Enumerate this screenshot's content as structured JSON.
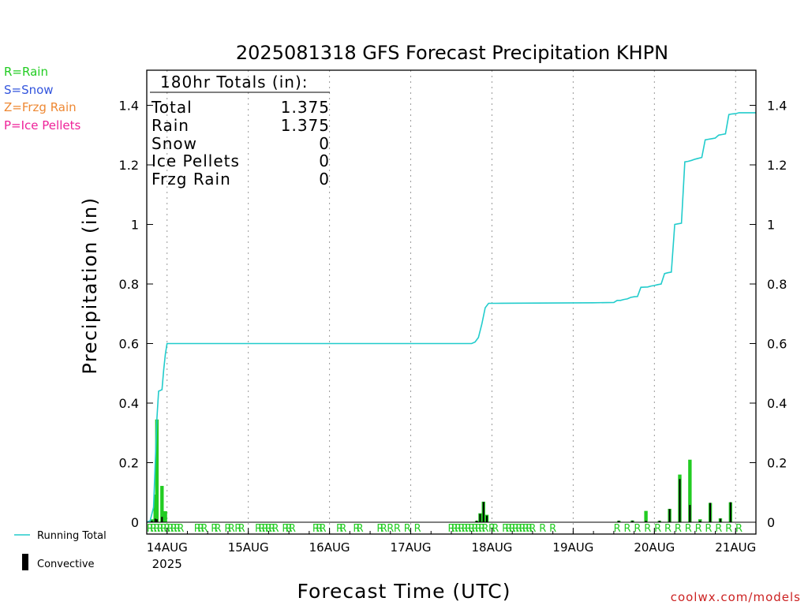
{
  "legend_types": [
    {
      "label": "R=Rain",
      "color": "#22cc22"
    },
    {
      "label": "S=Snow",
      "color": "#3355dd"
    },
    {
      "label": "Z=Frzg Rain",
      "color": "#ee8833"
    },
    {
      "label": "P=Ice Pellets",
      "color": "#ee2299"
    }
  ],
  "legend_lines": {
    "running_total": "Running Total",
    "convective": "Convective"
  },
  "totals_box": {
    "heading": "180hr Totals (in):",
    "rows": [
      {
        "label": "Total",
        "value": "1.375"
      },
      {
        "label": "Rain",
        "value": "1.375"
      },
      {
        "label": "Snow",
        "value": "0"
      },
      {
        "label": "Ice Pellets",
        "value": "0"
      },
      {
        "label": "Frzg Rain",
        "value": "0"
      }
    ]
  },
  "watermark": "coolwx.com/models",
  "chart_data": {
    "type": "bar",
    "title": "2025081318 GFS Forecast Precipitation KHPN",
    "xlabel": "Forecast Time (UTC)",
    "ylabel": "Precipitation (in)",
    "ylim": [
      0,
      1.5
    ],
    "yticks": [
      0,
      0.2,
      0.4,
      0.6,
      0.8,
      1,
      1.2,
      1.4
    ],
    "ytick_labels": [
      "0",
      "0.2",
      "0.4",
      "0.6",
      "0.8",
      "1",
      "1.2",
      "1.4"
    ],
    "xlim": [
      -6,
      174
    ],
    "x_ticks": [
      {
        "hour": 0,
        "label": "14AUG",
        "sublabel": "2025"
      },
      {
        "hour": 24,
        "label": "15AUG"
      },
      {
        "hour": 48,
        "label": "16AUG"
      },
      {
        "hour": 72,
        "label": "17AUG"
      },
      {
        "hour": 96,
        "label": "18AUG"
      },
      {
        "hour": 120,
        "label": "19AUG"
      },
      {
        "hour": 144,
        "label": "20AUG"
      },
      {
        "hour": 168,
        "label": "21AUG"
      }
    ],
    "grid": "vertical-dotted",
    "colors": {
      "rain": "#22cc22",
      "convective": "#000000",
      "running_total": "#22cccc"
    },
    "precip_type_marker": "R",
    "precip_type_marker_hours": [
      -5,
      -4,
      -3,
      -2,
      -1,
      0,
      1,
      2,
      3,
      4,
      9,
      10,
      11,
      14,
      15,
      18,
      19,
      21,
      22,
      27,
      28,
      29,
      30,
      31,
      32,
      35,
      36,
      37,
      44,
      45,
      46,
      51,
      52,
      56,
      57,
      63,
      64,
      66,
      68,
      71,
      74,
      84,
      85,
      86,
      87,
      88,
      89,
      90,
      91,
      92,
      93,
      94,
      96,
      97,
      100,
      101,
      102,
      103,
      104,
      105,
      106,
      107,
      108,
      111,
      114,
      133,
      136,
      139,
      142,
      145,
      148,
      151,
      154,
      157,
      160,
      163,
      166,
      169
    ],
    "series": [
      {
        "name": "Rain",
        "kind": "bar",
        "x": [
          -4.5,
          -3.5,
          -3.0,
          -1.5,
          -0.5,
          91.5,
          92.5,
          93.5,
          94.5,
          133.5,
          137.5,
          141.5,
          145.5,
          148.5,
          151.5,
          154.5,
          157.5,
          160.5,
          163.5,
          166.5
        ],
        "values": [
          0.01,
          0.093,
          0.345,
          0.122,
          0.037,
          0.005,
          0.03,
          0.069,
          0.025,
          0.005,
          0.006,
          0.038,
          0.005,
          0.045,
          0.16,
          0.21,
          0.01,
          0.065,
          0.013,
          0.067
        ]
      },
      {
        "name": "Convective",
        "kind": "bar",
        "x": [
          -4.5,
          -3.5,
          -3.0,
          -1.5,
          -0.5,
          91.5,
          92.5,
          93.5,
          94.5,
          133.5,
          137.5,
          141.5,
          145.5,
          148.5,
          151.5,
          154.5,
          157.5,
          160.5,
          163.5,
          166.5
        ],
        "values": [
          0.005,
          0.012,
          0.01,
          0.018,
          0.0,
          0.005,
          0.028,
          0.068,
          0.022,
          0.005,
          0.005,
          0.005,
          0.005,
          0.044,
          0.145,
          0.058,
          0.005,
          0.065,
          0.012,
          0.067
        ]
      },
      {
        "name": "Running Total",
        "kind": "line",
        "x": [
          -6,
          -5,
          -4,
          -3,
          -2.5,
          -1.5,
          -1,
          -0.5,
          0,
          90,
          91,
          92,
          93,
          94,
          95,
          96,
          97,
          126,
          132,
          133,
          134,
          135,
          136,
          137,
          138,
          139,
          140,
          142,
          143,
          144,
          145,
          146,
          147,
          148,
          149,
          150,
          151,
          152,
          153,
          154,
          155,
          156,
          157,
          158,
          159,
          160,
          161,
          162,
          163,
          164,
          165,
          166,
          167,
          168,
          169,
          174
        ],
        "values": [
          0,
          0.005,
          0.05,
          0.35,
          0.44,
          0.445,
          0.51,
          0.565,
          0.6,
          0.6,
          0.605,
          0.62,
          0.665,
          0.72,
          0.735,
          0.735,
          0.735,
          0.737,
          0.738,
          0.745,
          0.745,
          0.748,
          0.75,
          0.755,
          0.757,
          0.758,
          0.789,
          0.79,
          0.793,
          0.795,
          0.798,
          0.8,
          0.835,
          0.838,
          0.84,
          1.0,
          1.002,
          1.004,
          1.21,
          1.212,
          1.215,
          1.219,
          1.222,
          1.225,
          1.284,
          1.286,
          1.288,
          1.29,
          1.3,
          1.302,
          1.304,
          1.369,
          1.371,
          1.372,
          1.375,
          1.375
        ]
      }
    ]
  }
}
